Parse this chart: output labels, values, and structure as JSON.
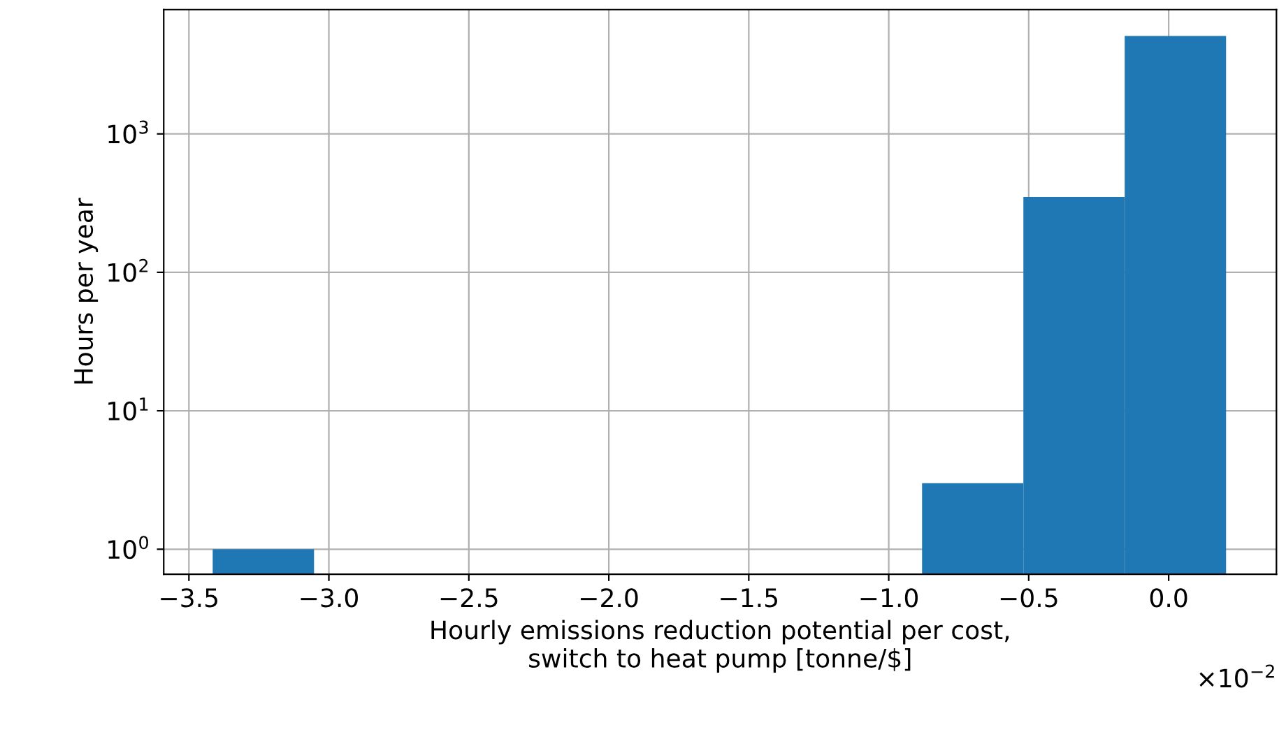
{
  "chart_data": {
    "type": "histogram",
    "xlabel": "Hourly emissions reduction potential per cost,\nswitch to heat pump [tonne/$]",
    "ylabel": "Hours per year",
    "bins": [
      -3.415,
      -3.053,
      -2.691,
      -2.329,
      -1.967,
      -1.605,
      -1.243,
      -0.881,
      -0.519,
      -0.157,
      0.205
    ],
    "values": [
      1,
      null,
      null,
      null,
      null,
      null,
      null,
      3,
      350,
      5100
    ],
    "color": "#1f77b4",
    "log": "y",
    "grid": true,
    "xlim": [
      -3.59,
      0.385
    ],
    "ylim": [
      0.66,
      7900
    ],
    "xticks": [
      {
        "value": -3.5,
        "label": "−3.5"
      },
      {
        "value": -3.0,
        "label": "−3.0"
      },
      {
        "value": -2.5,
        "label": "−2.5"
      },
      {
        "value": -2.0,
        "label": "−2.0"
      },
      {
        "value": -1.5,
        "label": "−1.5"
      },
      {
        "value": -1.0,
        "label": "−1.0"
      },
      {
        "value": -0.5,
        "label": "−0.5"
      },
      {
        "value": 0.0,
        "label": "0.0"
      }
    ],
    "yticks": [
      {
        "value": 1,
        "label": "10$^{0}$"
      },
      {
        "value": 10,
        "label": "10$^{1}$"
      },
      {
        "value": 100,
        "label": "10$^{2}$"
      },
      {
        "value": 1000,
        "label": "10$^{3}$"
      }
    ],
    "annotations": [
      "×10$^{−2}$"
    ]
  }
}
